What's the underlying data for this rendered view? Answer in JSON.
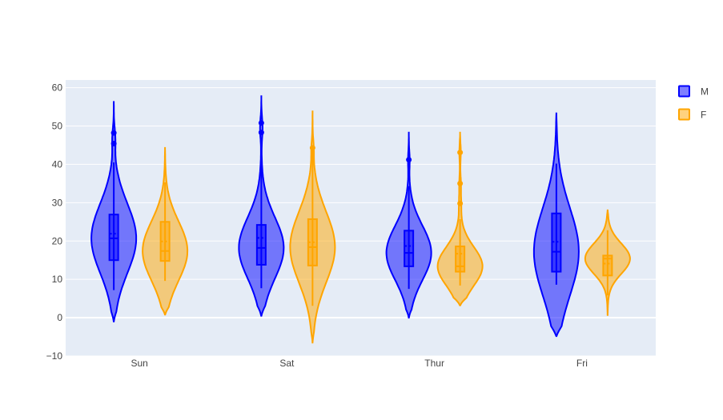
{
  "chart_data": {
    "type": "violin",
    "categories": [
      "Sun",
      "Sat",
      "Thur",
      "Fri"
    ],
    "ylim": [
      -10,
      62
    ],
    "yticks": [
      -10,
      0,
      10,
      20,
      30,
      40,
      50,
      60
    ],
    "grid": true,
    "legend_position": "top-right",
    "series": [
      {
        "name": "M",
        "color": "#0000ff",
        "fill": "rgba(0,0,255,0.5)",
        "groups": [
          {
            "category": "Sun",
            "min": 7.2,
            "q1": 15.0,
            "median": 20.7,
            "q3": 26.9,
            "max": 40.5,
            "mean": 21.9,
            "kde_min": -1,
            "kde_max": 56.5,
            "outliers": [
              45.4,
              48.2
            ]
          },
          {
            "category": "Sat",
            "min": 7.7,
            "q1": 13.8,
            "median": 18.2,
            "q3": 24.2,
            "max": 39.4,
            "mean": 20.8,
            "kde_min": 0.5,
            "kde_max": 58,
            "outliers": [
              48.3,
              50.8
            ]
          },
          {
            "category": "Thur",
            "min": 7.5,
            "q1": 13.4,
            "median": 16.9,
            "q3": 22.7,
            "max": 34.3,
            "mean": 18.7,
            "kde_min": 0,
            "kde_max": 48.5,
            "outliers": [
              41.2
            ]
          },
          {
            "category": "Fri",
            "min": 8.6,
            "q1": 12.0,
            "median": 17.2,
            "q3": 27.2,
            "max": 40.2,
            "mean": 19.8,
            "kde_min": -4.8,
            "kde_max": 53.5,
            "outliers": []
          }
        ]
      },
      {
        "name": "F",
        "color": "#ffa500",
        "fill": "rgba(255,165,0,0.5)",
        "groups": [
          {
            "category": "Sun",
            "min": 9.6,
            "q1": 14.8,
            "median": 17.4,
            "q3": 25.0,
            "max": 35.3,
            "mean": 19.9,
            "kde_min": 0.8,
            "kde_max": 44.5,
            "outliers": []
          },
          {
            "category": "Sat",
            "min": 3.1,
            "q1": 13.6,
            "median": 18.4,
            "q3": 25.7,
            "max": 44.3,
            "mean": 19.7,
            "kde_min": -6.5,
            "kde_max": 54,
            "outliers": [
              44.3
            ]
          },
          {
            "category": "Thur",
            "min": 8.4,
            "q1": 12.0,
            "median": 13.4,
            "q3": 18.6,
            "max": 25.7,
            "mean": 16.7,
            "kde_min": 3.2,
            "kde_max": 48.5,
            "outliers": [
              29.8,
              35.0,
              43.1
            ]
          },
          {
            "category": "Fri",
            "min": 5.8,
            "q1": 11.0,
            "median": 15.4,
            "q3": 16.2,
            "max": 22.8,
            "mean": 14.1,
            "kde_min": 0.5,
            "kde_max": 28.2,
            "outliers": []
          }
        ]
      }
    ]
  }
}
